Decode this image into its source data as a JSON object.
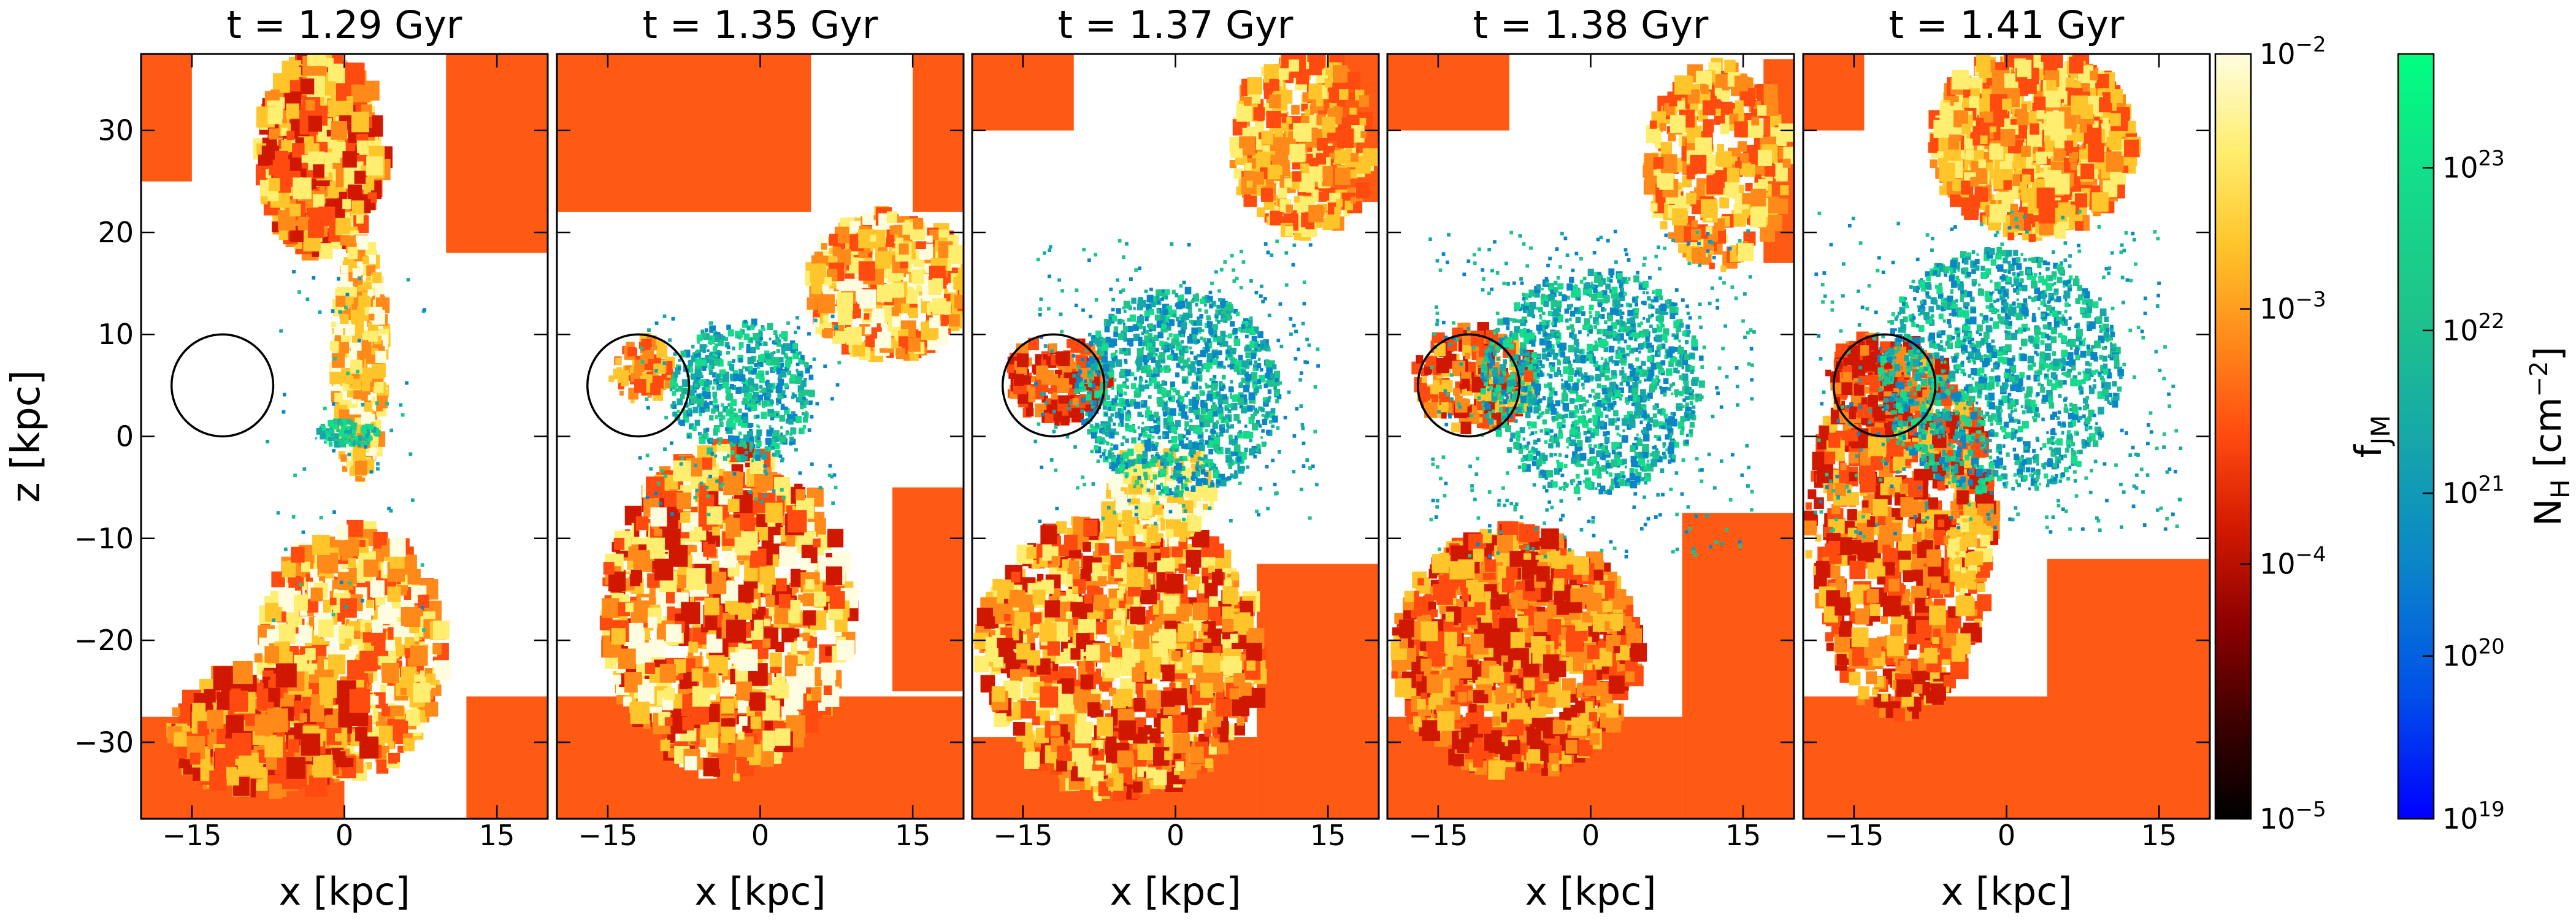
{
  "chart_data": {
    "type": "heatmap",
    "description_free": true,
    "panels": [
      {
        "title": "t = 1.29 Gyr",
        "xlabel": "x [kpc]"
      },
      {
        "title": "t = 1.35 Gyr",
        "xlabel": "x [kpc]"
      },
      {
        "title": "t = 1.37 Gyr",
        "xlabel": "x [kpc]"
      },
      {
        "title": "t = 1.38 Gyr",
        "xlabel": "x [kpc]"
      },
      {
        "title": "t = 1.41 Gyr",
        "xlabel": "x [kpc]"
      }
    ],
    "ylabel": "z [kpc]",
    "xlim": [
      -20,
      20
    ],
    "ylim": [
      -37.5,
      37.5
    ],
    "xticks": [
      -15,
      0,
      15
    ],
    "xtick_labels": [
      "−15",
      "0",
      "15"
    ],
    "yticks": [
      -30,
      -20,
      -10,
      0,
      10,
      20,
      30
    ],
    "ytick_labels": [
      "−30",
      "−20",
      "−10",
      "0",
      "10",
      "20",
      "30"
    ],
    "circle": {
      "x": -12,
      "z": 5,
      "r": 5
    },
    "colorbar_fjm": {
      "label": "f_JM",
      "scale": "log",
      "range": [
        1e-05,
        0.01
      ],
      "ticks": [
        {
          "base": "10",
          "exp": "−2",
          "value": 0.01
        },
        {
          "base": "10",
          "exp": "−3",
          "value": 0.001
        },
        {
          "base": "10",
          "exp": "−4",
          "value": 0.0001
        },
        {
          "base": "10",
          "exp": "−5",
          "value": 1e-05
        }
      ],
      "colors": [
        "#000000",
        "#3c0000",
        "#8b0000",
        "#d01800",
        "#ff4a10",
        "#ff8a1a",
        "#ffc52a",
        "#ffee70",
        "#fffde0"
      ]
    },
    "colorbar_nh": {
      "label": "N_H [cm^-2]",
      "scale": "log",
      "range": [
        1e+19,
        5e+23
      ],
      "ticks": [
        {
          "base": "10",
          "exp": "23",
          "value": 1e+23
        },
        {
          "base": "10",
          "exp": "22",
          "value": 1e+22
        },
        {
          "base": "10",
          "exp": "21",
          "value": 1e+21
        },
        {
          "base": "10",
          "exp": "20",
          "value": 1e+20
        },
        {
          "base": "10",
          "exp": "19",
          "value": 1e+19
        }
      ],
      "colors": [
        "#0000ff",
        "#0052e8",
        "#0a86c8",
        "#16a8a8",
        "#1ec48a",
        "#14dc8a",
        "#00ff80"
      ]
    }
  }
}
